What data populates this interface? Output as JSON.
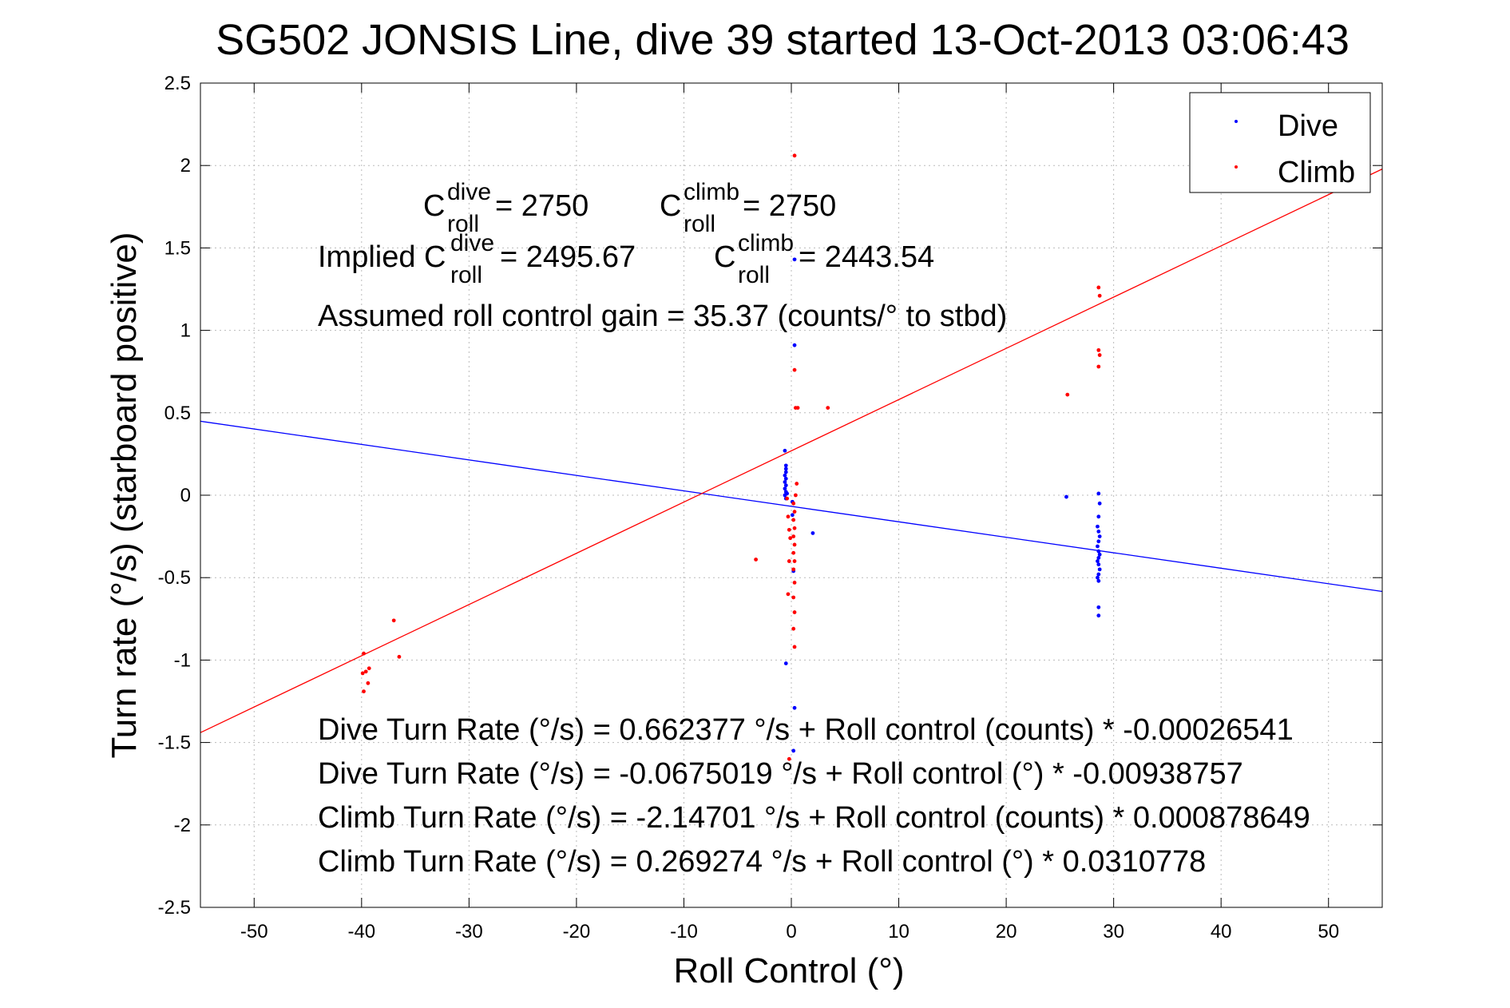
{
  "chart_data": {
    "type": "scatter",
    "title": "SG502 JONSIS Line, dive 39 started 13-Oct-2013 03:06:43",
    "xlabel": "Roll Control (°)",
    "ylabel": "Turn rate (°/s)  (starboard positive)",
    "xlim": [
      -55,
      55
    ],
    "ylim": [
      -2.5,
      2.5
    ],
    "xticks": [
      "-50",
      "-40",
      "-30",
      "-20",
      "-10",
      "0",
      "10",
      "20",
      "30",
      "40",
      "50"
    ],
    "yticks": [
      "2.5",
      "2",
      "1.5",
      "1",
      "0.5",
      "0",
      "-0.5",
      "-1",
      "-1.5",
      "-2",
      "-2.5"
    ],
    "grid": true,
    "legend_position": "top-right",
    "series": [
      {
        "name": "Dive",
        "color": "#0000ff",
        "points": [
          [
            -0.6,
            0.27
          ],
          [
            -0.5,
            0.18
          ],
          [
            -0.5,
            0.16
          ],
          [
            -0.5,
            0.14
          ],
          [
            -0.6,
            0.12
          ],
          [
            -0.5,
            0.1
          ],
          [
            -0.6,
            0.08
          ],
          [
            -0.5,
            0.06
          ],
          [
            -0.6,
            0.04
          ],
          [
            -0.5,
            0.02
          ],
          [
            -0.6,
            0.0
          ],
          [
            -0.5,
            -0.02
          ],
          [
            -0.4,
            0.01
          ],
          [
            0.1,
            -0.04
          ],
          [
            0.1,
            -0.12
          ],
          [
            0.2,
            -0.46
          ],
          [
            -0.5,
            -1.02
          ],
          [
            0.3,
            -1.29
          ],
          [
            0.2,
            -1.55
          ],
          [
            0.3,
            0.91
          ],
          [
            0.3,
            1.43
          ],
          [
            2.0,
            -0.23
          ],
          [
            25.6,
            -0.01
          ],
          [
            28.6,
            0.01
          ],
          [
            28.7,
            -0.05
          ],
          [
            28.6,
            -0.13
          ],
          [
            28.5,
            -0.19
          ],
          [
            28.6,
            -0.22
          ],
          [
            28.7,
            -0.25
          ],
          [
            28.6,
            -0.28
          ],
          [
            28.5,
            -0.31
          ],
          [
            28.6,
            -0.34
          ],
          [
            28.7,
            -0.36
          ],
          [
            28.6,
            -0.38
          ],
          [
            28.5,
            -0.4
          ],
          [
            28.6,
            -0.42
          ],
          [
            28.7,
            -0.45
          ],
          [
            28.6,
            -0.48
          ],
          [
            28.5,
            -0.5
          ],
          [
            28.6,
            -0.52
          ],
          [
            28.6,
            -0.68
          ],
          [
            28.6,
            -0.73
          ]
        ]
      },
      {
        "name": "Climb",
        "color": "#ff0000",
        "points": [
          [
            -39.8,
            -0.96
          ],
          [
            -39.9,
            -1.08
          ],
          [
            -39.6,
            -1.07
          ],
          [
            -39.3,
            -1.05
          ],
          [
            -39.4,
            -1.14
          ],
          [
            -39.8,
            -1.19
          ],
          [
            -37.0,
            -0.76
          ],
          [
            -36.5,
            -0.98
          ],
          [
            -3.3,
            -0.39
          ],
          [
            -0.4,
            -0.02
          ],
          [
            -0.3,
            -0.13
          ],
          [
            -0.2,
            -0.21
          ],
          [
            -0.1,
            -0.26
          ],
          [
            -0.2,
            -0.4
          ],
          [
            -0.3,
            -0.6
          ],
          [
            -0.2,
            -1.6
          ],
          [
            0.3,
            2.06
          ],
          [
            0.3,
            0.76
          ],
          [
            0.4,
            0.53
          ],
          [
            0.6,
            0.53
          ],
          [
            0.5,
            0.07
          ],
          [
            0.4,
            0.0
          ],
          [
            0.2,
            -0.05
          ],
          [
            0.3,
            -0.1
          ],
          [
            0.2,
            -0.15
          ],
          [
            0.3,
            -0.2
          ],
          [
            0.2,
            -0.25
          ],
          [
            0.3,
            -0.3
          ],
          [
            0.2,
            -0.35
          ],
          [
            0.3,
            -0.4
          ],
          [
            0.2,
            -0.45
          ],
          [
            0.3,
            -0.53
          ],
          [
            0.2,
            -0.62
          ],
          [
            0.3,
            -0.71
          ],
          [
            0.2,
            -0.81
          ],
          [
            0.3,
            -0.92
          ],
          [
            3.4,
            0.53
          ],
          [
            25.7,
            0.61
          ],
          [
            28.6,
            1.26
          ],
          [
            28.7,
            1.21
          ],
          [
            28.6,
            0.88
          ],
          [
            28.7,
            0.85
          ],
          [
            28.6,
            0.78
          ]
        ]
      }
    ],
    "fit_lines": [
      {
        "name": "Dive fit",
        "color": "#0000ff",
        "intercept": -0.0675019,
        "slope": -0.00938757
      },
      {
        "name": "Climb fit",
        "color": "#ff0000",
        "intercept": 0.269274,
        "slope": 0.0310778
      }
    ],
    "legend": {
      "dive": "Dive",
      "climb": "Climb"
    },
    "annotations": {
      "c_dive_base": "C",
      "c_dive_sup": "dive",
      "c_dive_sub": "roll",
      "c_dive_val": " = 2750",
      "c_climb_base": "C",
      "c_climb_sup": "climb",
      "c_climb_sub": "roll",
      "c_climb_val": " = 2750",
      "implied_prefix": "Implied C",
      "implied_dive_sup": "dive",
      "implied_dive_sub": "roll",
      "implied_dive_val": " = 2495.67",
      "implied_climb_base": "C",
      "implied_climb_sup": "climb",
      "implied_climb_sub": "roll",
      "implied_climb_val": " = 2443.54",
      "gain": "Assumed roll control gain = 35.37 (counts/° to stbd)",
      "eq1": "Dive Turn Rate (°/s) = 0.662377 °/s + Roll control (counts) * -0.00026541",
      "eq2": "Dive Turn Rate (°/s) = -0.0675019 °/s + Roll control (°) * -0.00938757",
      "eq3": "Climb Turn Rate (°/s) = -2.14701 °/s + Roll control (counts) * 0.000878649",
      "eq4": "Climb Turn Rate (°/s) = 0.269274 °/s + Roll control (°) * 0.0310778"
    }
  }
}
